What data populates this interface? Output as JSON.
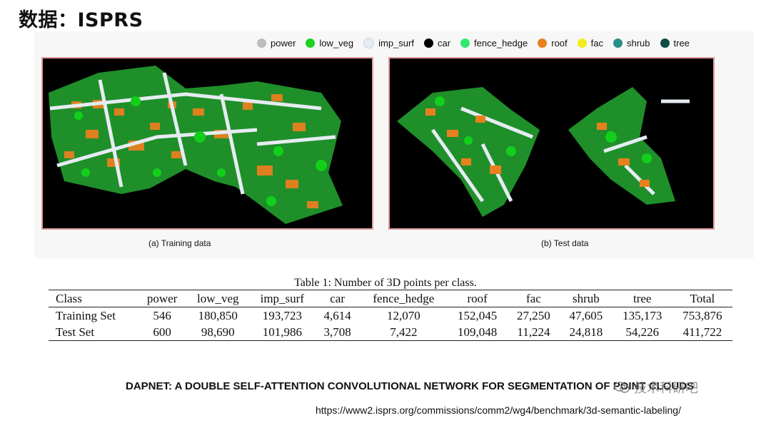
{
  "page": {
    "title": "数据：ISPRS"
  },
  "legend": [
    {
      "label": "power",
      "color": "#bdbdbd"
    },
    {
      "label": "low_veg",
      "color": "#1fd21f"
    },
    {
      "label": "imp_surf",
      "color": "#e6ecf2"
    },
    {
      "label": "car",
      "color": "#000000"
    },
    {
      "label": "fence_hedge",
      "color": "#2ee86e"
    },
    {
      "label": "roof",
      "color": "#e8801f"
    },
    {
      "label": "fac",
      "color": "#f2ee1a"
    },
    {
      "label": "shrub",
      "color": "#2a8f88"
    },
    {
      "label": "tree",
      "color": "#0f4c45"
    }
  ],
  "figures": {
    "training_caption": "(a) Training data",
    "test_caption": "(b) Test data"
  },
  "table": {
    "caption": "Table 1: Number of 3D points per class.",
    "headers": [
      "Class",
      "power",
      "low_veg",
      "imp_surf",
      "car",
      "fence_hedge",
      "roof",
      "fac",
      "shrub",
      "tree",
      "Total"
    ],
    "rows": [
      [
        "Training Set",
        "546",
        "180,850",
        "193,723",
        "4,614",
        "12,070",
        "152,045",
        "27,250",
        "47,605",
        "135,173",
        "753,876"
      ],
      [
        "Test Set",
        "600",
        "98,690",
        "101,986",
        "3,708",
        "7,422",
        "109,048",
        "11,224",
        "24,818",
        "54,226",
        "411,722"
      ]
    ]
  },
  "footer": {
    "paper_title": "DAPNET: A DOUBLE SELF-ATTENTION CONVOLUTIONAL NETWORK FOR SEGMENTATION OF POINT CLOUDS",
    "watermark": "技术科研吧",
    "url": "https://www2.isprs.org/commissions/comm2/wg4/benchmark/3d-semantic-labeling/"
  }
}
